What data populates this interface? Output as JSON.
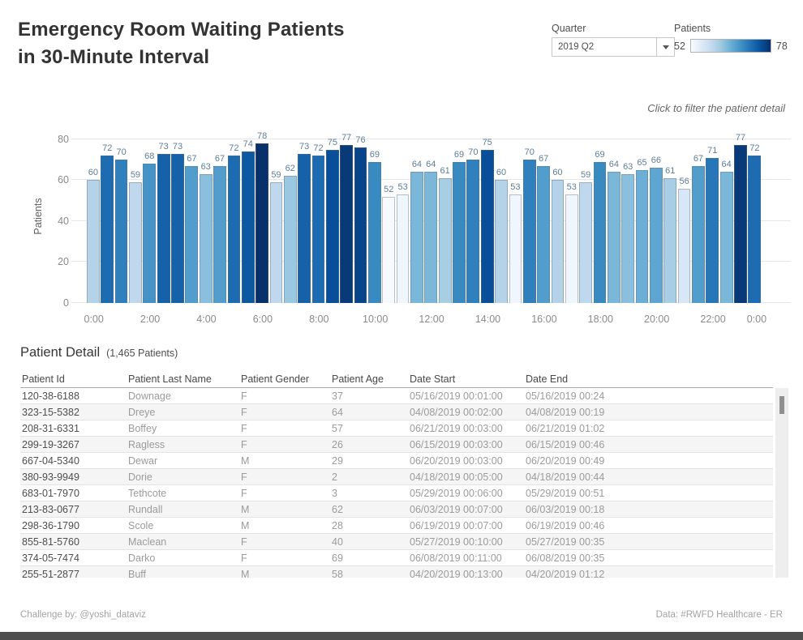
{
  "header": {
    "title_line1": "Emergency Room Waiting Patients",
    "title_line2": "in 30-Minute Interval",
    "quarter_label": "Quarter",
    "quarter_value": "2019 Q2",
    "legend_title": "Patients",
    "legend_min": "52",
    "legend_max": "78",
    "subtitle": "Click to filter the patient detail"
  },
  "chart_data": {
    "type": "bar",
    "title": "",
    "xlabel": "",
    "ylabel": "Patients",
    "yticks": [
      0,
      20,
      40,
      60,
      80
    ],
    "ylim": [
      0,
      85.5
    ],
    "x_tick_labels": [
      "0:00",
      "2:00",
      "4:00",
      "6:00",
      "8:00",
      "10:00",
      "12:00",
      "14:00",
      "16:00",
      "18:00",
      "20:00",
      "22:00",
      "0:00"
    ],
    "interval_minutes": 30,
    "values": [
      60,
      72,
      70,
      59,
      68,
      73,
      73,
      67,
      63,
      67,
      72,
      74,
      78,
      59,
      62,
      73,
      72,
      75,
      77,
      76,
      69,
      52,
      53,
      64,
      64,
      61,
      69,
      70,
      75,
      60,
      53,
      70,
      67,
      60,
      53,
      59,
      69,
      64,
      63,
      65,
      66,
      61,
      56,
      67,
      71,
      64,
      77,
      72
    ],
    "color_scale": {
      "min": 52,
      "max": 78,
      "stops": [
        "#f7fbff",
        "#deebf7",
        "#c6dbef",
        "#9ecae1",
        "#6baed6",
        "#4292c6",
        "#2171b5",
        "#08519c",
        "#08306b"
      ]
    },
    "label_color": "#5f7d96",
    "grid": true,
    "legend_position": "top-right"
  },
  "detail": {
    "title": "Patient Detail",
    "count_note": "(1,465 Patients)",
    "columns": [
      "Patient Id",
      "Patient Last Name",
      "Patient Gender",
      "Patient Age",
      "Date Start",
      "Date End"
    ],
    "rows": [
      [
        "120-38-6188",
        "Downage",
        "F",
        "37",
        "05/16/2019 00:01:00",
        "05/16/2019 00:24"
      ],
      [
        "323-15-5382",
        "Dreye",
        "F",
        "64",
        "04/08/2019 00:02:00",
        "04/08/2019 00:19"
      ],
      [
        "208-31-6331",
        "Boffey",
        "F",
        "57",
        "06/21/2019 00:03:00",
        "06/21/2019 01:02"
      ],
      [
        "299-19-3267",
        "Ragless",
        "F",
        "26",
        "06/15/2019 00:03:00",
        "06/15/2019 00:46"
      ],
      [
        "667-04-5340",
        "Dewar",
        "M",
        "29",
        "06/20/2019 00:03:00",
        "06/20/2019 00:49"
      ],
      [
        "380-93-9949",
        "Dorie",
        "F",
        "2",
        "04/18/2019 00:05:00",
        "04/18/2019 00:44"
      ],
      [
        "683-01-7970",
        "Tethcote",
        "F",
        "3",
        "05/29/2019 00:06:00",
        "05/29/2019 00:51"
      ],
      [
        "213-83-0677",
        "Rundall",
        "M",
        "62",
        "06/03/2019 00:07:00",
        "06/03/2019 00:18"
      ],
      [
        "298-36-1790",
        "Scole",
        "M",
        "28",
        "06/19/2019 00:07:00",
        "06/19/2019 00:46"
      ],
      [
        "855-81-5760",
        "Maclean",
        "F",
        "40",
        "05/27/2019 00:10:00",
        "05/27/2019 00:35"
      ],
      [
        "374-05-7474",
        "Darko",
        "F",
        "69",
        "06/08/2019 00:11:00",
        "06/08/2019 00:35"
      ],
      [
        "255-51-2877",
        "Buff",
        "M",
        "58",
        "04/20/2019 00:13:00",
        "04/20/2019 01:12"
      ]
    ]
  },
  "footer": {
    "left": "Challenge by: @yoshi_dataviz",
    "right": "Data: #RWFD Healthcare - ER"
  }
}
